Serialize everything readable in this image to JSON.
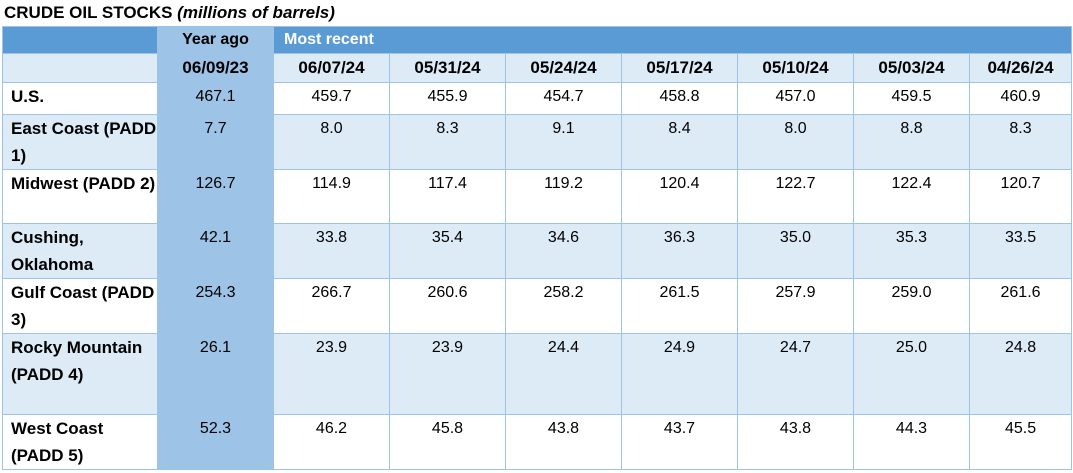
{
  "title": {
    "main": "CRUDE OIL STOCKS ",
    "sub": "(millions of barrels)"
  },
  "header": {
    "year_ago": "Year ago",
    "most_recent": "Most recent",
    "dates": [
      "06/09/23",
      "06/07/24",
      "05/31/24",
      "05/24/24",
      "05/17/24",
      "05/10/24",
      "05/03/24",
      "04/26/24"
    ]
  },
  "rows": [
    {
      "label": "U.S.",
      "values": [
        "467.1",
        "459.7",
        "455.9",
        "454.7",
        "458.8",
        "457.0",
        "459.5",
        "460.9"
      ]
    },
    {
      "label": "East Coast (PADD 1)",
      "values": [
        "7.7",
        "8.0",
        "8.3",
        "9.1",
        "8.4",
        "8.0",
        "8.8",
        "8.3"
      ]
    },
    {
      "label": "Midwest (PADD 2)",
      "values": [
        "126.7",
        "114.9",
        "117.4",
        "119.2",
        "120.4",
        "122.7",
        "122.4",
        "120.7"
      ]
    },
    {
      "label": "Cushing, Oklahoma",
      "values": [
        "42.1",
        "33.8",
        "35.4",
        "34.6",
        "36.3",
        "35.0",
        "35.3",
        "33.5"
      ]
    },
    {
      "label": "Gulf Coast (PADD 3)",
      "values": [
        "254.3",
        "266.7",
        "260.6",
        "258.2",
        "261.5",
        "257.9",
        "259.0",
        "261.6"
      ]
    },
    {
      "label": "Rocky Mountain (PADD 4)",
      "values": [
        "26.1",
        "23.9",
        "23.9",
        "24.4",
        "24.9",
        "24.7",
        "25.0",
        "24.8"
      ]
    },
    {
      "label": "West Coast (PADD 5)",
      "values": [
        "52.3",
        "46.2",
        "45.8",
        "43.8",
        "43.7",
        "43.8",
        "44.3",
        "45.5"
      ]
    }
  ]
}
